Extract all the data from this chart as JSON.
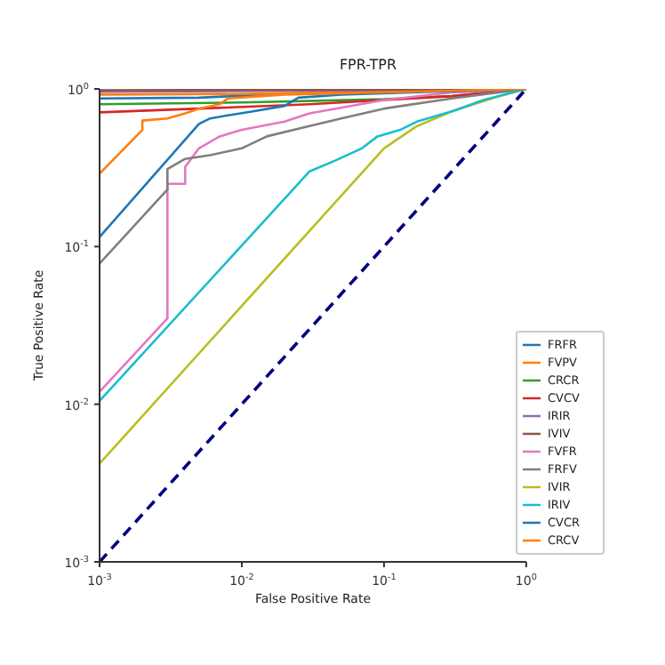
{
  "chart_data": {
    "type": "line",
    "title": "FPR-TPR",
    "xlabel": "False Positive Rate",
    "ylabel": "True Positive Rate",
    "log": "xy",
    "grid": false,
    "legend": "bottom right",
    "marker": "none",
    "xlim": [
      0.001,
      1
    ],
    "ylim": [
      0.001,
      1
    ],
    "xticks": [
      {
        "value": 0.001,
        "label": "10$^{-3}$"
      },
      {
        "value": 0.01,
        "label": "10$^{-2}$"
      },
      {
        "value": 0.1,
        "label": "10$^{-1}$"
      },
      {
        "value": 1,
        "label": "10$^{0}$"
      }
    ],
    "yticks": [
      {
        "value": 0.001,
        "label": "10$^{-3}$"
      },
      {
        "value": 0.01,
        "label": "10$^{-2}$"
      },
      {
        "value": 0.1,
        "label": "10$^{-1}$"
      },
      {
        "value": 1,
        "label": "10$^{0}$"
      }
    ],
    "series": [
      {
        "name": "FRFR",
        "color": "#1f77b4",
        "x": [
          0.001,
          0.005,
          0.02,
          0.1,
          1
        ],
        "values": [
          0.87,
          0.88,
          0.93,
          0.96,
          1
        ]
      },
      {
        "name": "FVPV",
        "color": "#ff7f0e",
        "x": [
          0.001,
          0.01,
          0.1,
          1
        ],
        "values": [
          0.92,
          0.93,
          0.96,
          1
        ]
      },
      {
        "name": "CRCR",
        "color": "#2ca02c",
        "x": [
          0.001,
          0.01,
          0.1,
          0.3,
          1
        ],
        "values": [
          0.8,
          0.82,
          0.86,
          0.9,
          1
        ]
      },
      {
        "name": "CVCV",
        "color": "#d62728",
        "x": [
          0.001,
          0.005,
          0.03,
          0.3,
          1
        ],
        "values": [
          0.71,
          0.75,
          0.8,
          0.9,
          1
        ]
      },
      {
        "name": "IRIR",
        "color": "#9467bd",
        "x": [
          0.001,
          0.1,
          1
        ],
        "values": [
          0.96,
          0.98,
          1
        ]
      },
      {
        "name": "IVIV",
        "color": "#8c564b",
        "x": [
          0.001,
          0.1,
          1
        ],
        "values": [
          0.98,
          0.99,
          1
        ]
      },
      {
        "name": "FVFR",
        "color": "#e377c2",
        "x": [
          0.001,
          0.003,
          0.003,
          0.004,
          0.004,
          0.005,
          0.007,
          0.01,
          0.02,
          0.03,
          0.1,
          0.3,
          1
        ],
        "values": [
          0.012,
          0.035,
          0.25,
          0.25,
          0.32,
          0.42,
          0.5,
          0.55,
          0.62,
          0.7,
          0.85,
          0.95,
          1
        ]
      },
      {
        "name": "FRFV",
        "color": "#7f7f7f",
        "x": [
          0.001,
          0.003,
          0.003,
          0.004,
          0.006,
          0.01,
          0.015,
          0.025,
          0.05,
          0.1,
          0.3,
          1
        ],
        "values": [
          0.078,
          0.23,
          0.31,
          0.36,
          0.38,
          0.42,
          0.5,
          0.56,
          0.65,
          0.75,
          0.87,
          1
        ]
      },
      {
        "name": "IVIR",
        "color": "#bcbd22",
        "x": [
          0.001,
          0.1,
          0.17,
          0.3,
          0.6,
          1
        ],
        "values": [
          0.0042,
          0.42,
          0.58,
          0.72,
          0.88,
          1
        ]
      },
      {
        "name": "IRIV",
        "color": "#17becf",
        "x": [
          0.001,
          0.03,
          0.045,
          0.07,
          0.09,
          0.13,
          0.17,
          0.3,
          0.5,
          1
        ],
        "values": [
          0.0105,
          0.3,
          0.35,
          0.42,
          0.5,
          0.55,
          0.62,
          0.72,
          0.85,
          1
        ]
      },
      {
        "name": "CVCR",
        "color": "#1f77b4",
        "x": [
          0.001,
          0.005,
          0.006,
          0.008,
          0.012,
          0.02,
          0.025,
          0.05,
          1
        ],
        "values": [
          0.115,
          0.6,
          0.65,
          0.68,
          0.72,
          0.78,
          0.88,
          0.92,
          1
        ]
      },
      {
        "name": "CRCV",
        "color": "#ff7f0e",
        "x": [
          0.001,
          0.002,
          0.002,
          0.003,
          0.004,
          0.005,
          0.007,
          0.008,
          0.02,
          1
        ],
        "values": [
          0.29,
          0.55,
          0.63,
          0.65,
          0.7,
          0.75,
          0.8,
          0.87,
          0.92,
          1
        ]
      },
      {
        "color": "#000080",
        "line_style": "dashed",
        "x": [
          0.001,
          1
        ],
        "values": [
          0.001,
          1
        ]
      }
    ]
  }
}
